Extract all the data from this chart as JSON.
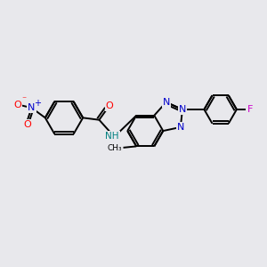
{
  "bg_color": "#e8e8ec",
  "bond_color": "#000000",
  "bond_width": 1.4,
  "atom_colors": {
    "N": "#0000cc",
    "O": "#ff0000",
    "F": "#cc00cc",
    "NH": "#008080"
  },
  "scale": 1.0
}
